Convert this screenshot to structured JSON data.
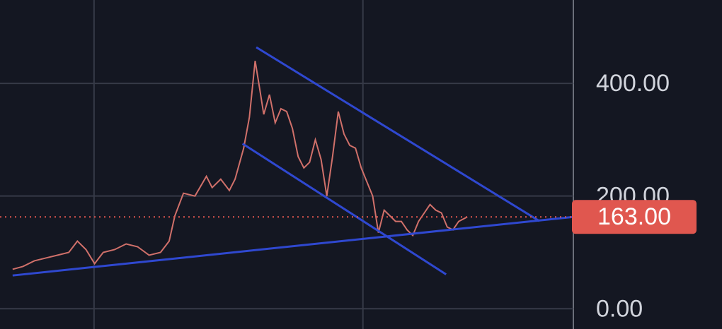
{
  "chart_data": {
    "type": "line",
    "x": [
      2.2,
      4,
      6,
      8,
      10,
      12,
      13.5,
      15,
      16.5,
      18,
      20,
      22,
      24,
      26,
      28,
      29.5,
      30.5,
      32,
      34,
      36,
      37,
      38.5,
      40,
      41,
      42.5,
      43.5,
      44.5,
      45.3,
      46,
      47,
      48,
      49,
      50,
      51,
      52,
      53,
      54,
      55,
      56,
      57,
      58,
      59,
      60,
      61,
      62,
      63,
      64,
      65,
      66,
      67,
      68,
      69,
      70,
      71,
      72,
      73,
      74,
      75,
      76,
      77,
      78,
      79,
      80,
      81.5
    ],
    "values": [
      70,
      75,
      85,
      90,
      95,
      100,
      120,
      105,
      80,
      100,
      105,
      115,
      110,
      95,
      100,
      120,
      165,
      205,
      200,
      235,
      215,
      230,
      210,
      230,
      285,
      340,
      440,
      390,
      345,
      380,
      330,
      355,
      350,
      320,
      270,
      250,
      260,
      300,
      265,
      200,
      270,
      350,
      310,
      290,
      285,
      250,
      225,
      200,
      135,
      175,
      165,
      155,
      155,
      140,
      130,
      155,
      170,
      185,
      175,
      170,
      145,
      140,
      155,
      163
    ],
    "color": "#d0706a",
    "xlim": [
      0,
      100
    ],
    "xgrid": [
      16.4,
      63.3
    ],
    "ylim": [
      -36,
      548
    ],
    "yticks": [
      {
        "value": 0,
        "label": "0.00"
      },
      {
        "value": 200,
        "label": "200.00"
      },
      {
        "value": 400,
        "label": "400.00"
      }
    ],
    "grid": true,
    "current_price": {
      "value": 163,
      "label": "163.00",
      "color": "#e0574f"
    },
    "trendlines": [
      {
        "x": [
          44.7,
          94.1
        ],
        "y": [
          464,
          155.5
        ]
      },
      {
        "x": [
          42.3,
          77.8
        ],
        "y": [
          293,
          61
        ]
      },
      {
        "x": [
          2.2,
          100
        ],
        "y": [
          59,
          163
        ]
      }
    ],
    "trendline_color": "#2f48d0"
  }
}
